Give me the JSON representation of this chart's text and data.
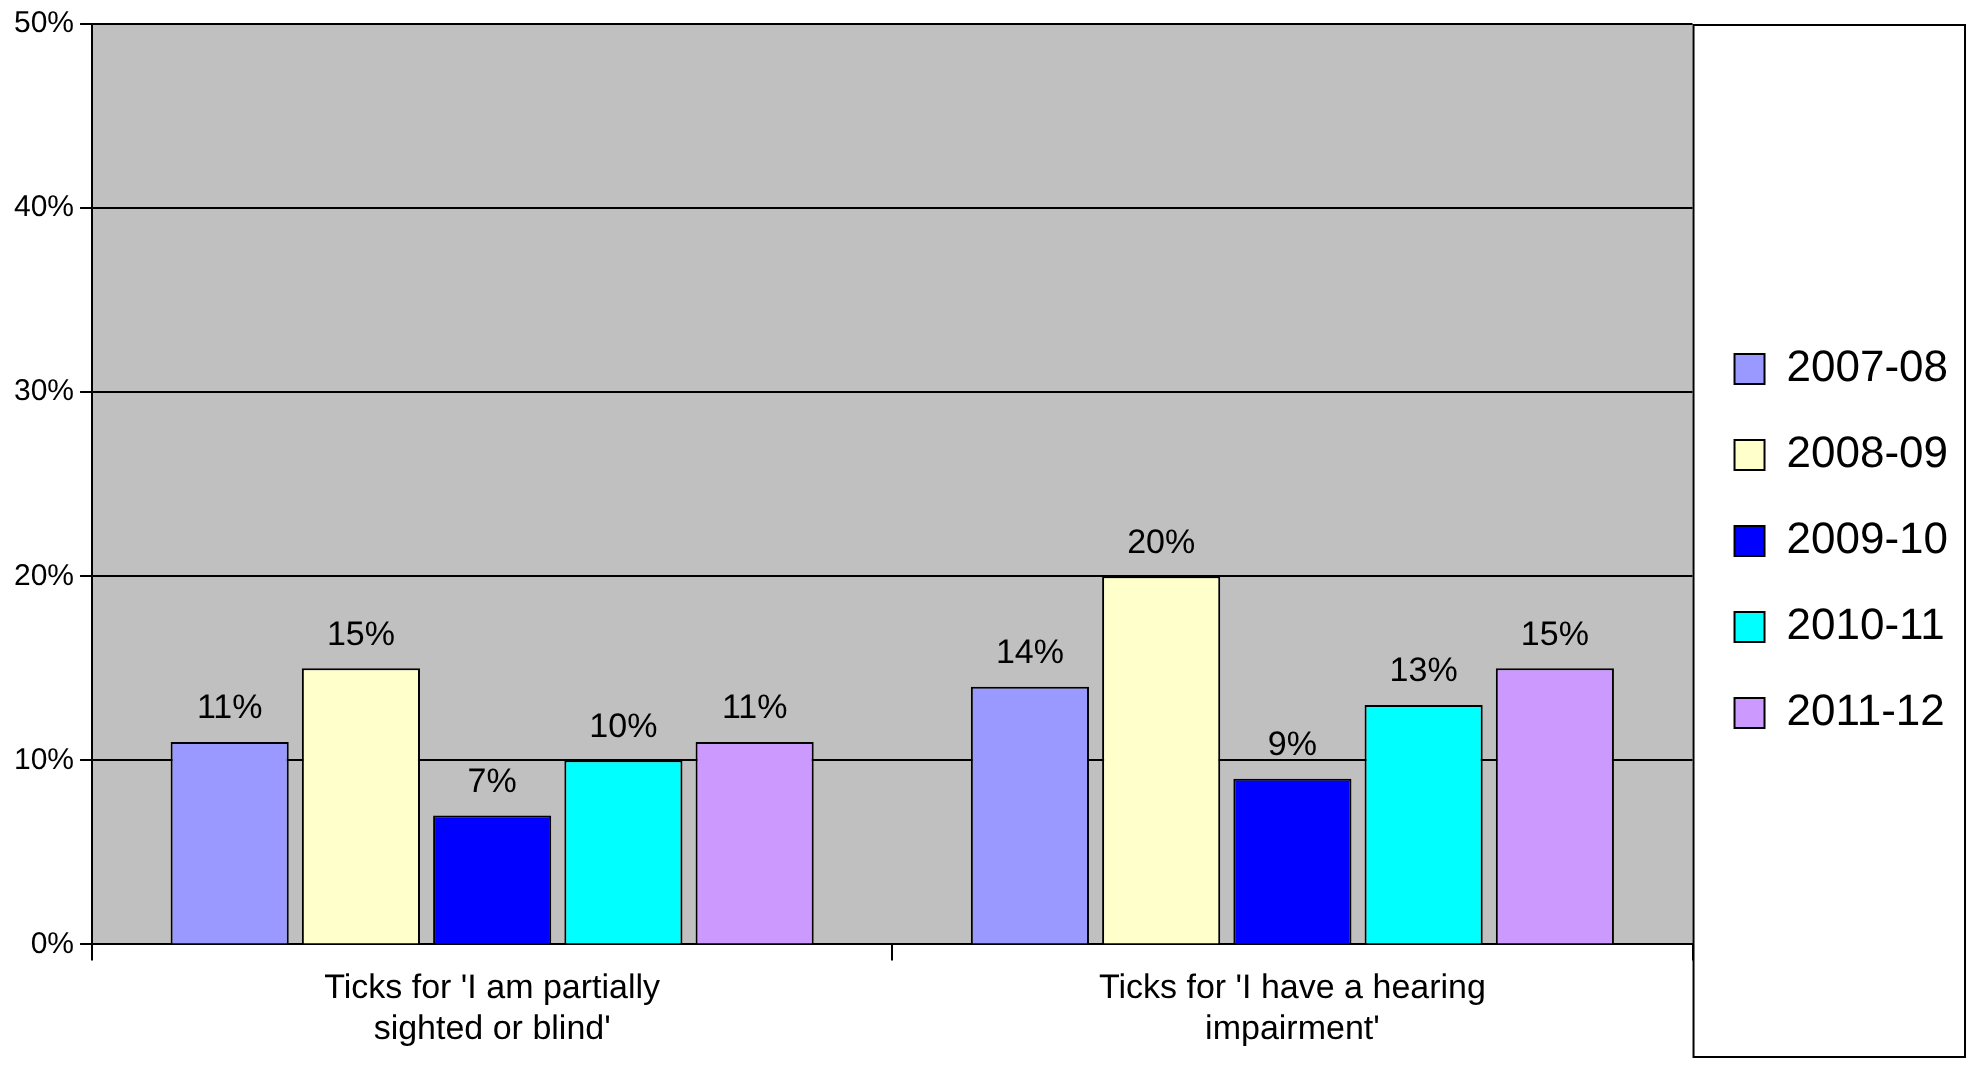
{
  "chart_data": {
    "type": "bar",
    "categories": [
      "Ticks for 'I am partially sighted or blind'",
      "Ticks for 'I have a hearing impairment'"
    ],
    "series": [
      {
        "name": "2007-08",
        "color": "#9999ff",
        "values": [
          11,
          14
        ],
        "value_labels": [
          "11%",
          "14%"
        ]
      },
      {
        "name": "2008-09",
        "color": "#ffffcc",
        "values": [
          15,
          20
        ],
        "value_labels": [
          "15%",
          "20%"
        ]
      },
      {
        "name": "2009-10",
        "color": "#0000ff",
        "values": [
          7,
          9
        ],
        "value_labels": [
          "7%",
          "9%"
        ]
      },
      {
        "name": "2010-11",
        "color": "#00ffff",
        "values": [
          10,
          13
        ],
        "value_labels": [
          "10%",
          "13%"
        ]
      },
      {
        "name": "2011-12",
        "color": "#cc99ff",
        "values": [
          11,
          15
        ],
        "value_labels": [
          "11%",
          "15%"
        ]
      }
    ],
    "ylim": [
      0,
      50
    ],
    "yticks": [
      {
        "value": 0,
        "label": "0%"
      },
      {
        "value": 10,
        "label": "10%"
      },
      {
        "value": 20,
        "label": "20%"
      },
      {
        "value": 30,
        "label": "30%"
      },
      {
        "value": 40,
        "label": "40%"
      },
      {
        "value": 50,
        "label": "50%"
      }
    ],
    "grid": "y",
    "legend": "right"
  }
}
